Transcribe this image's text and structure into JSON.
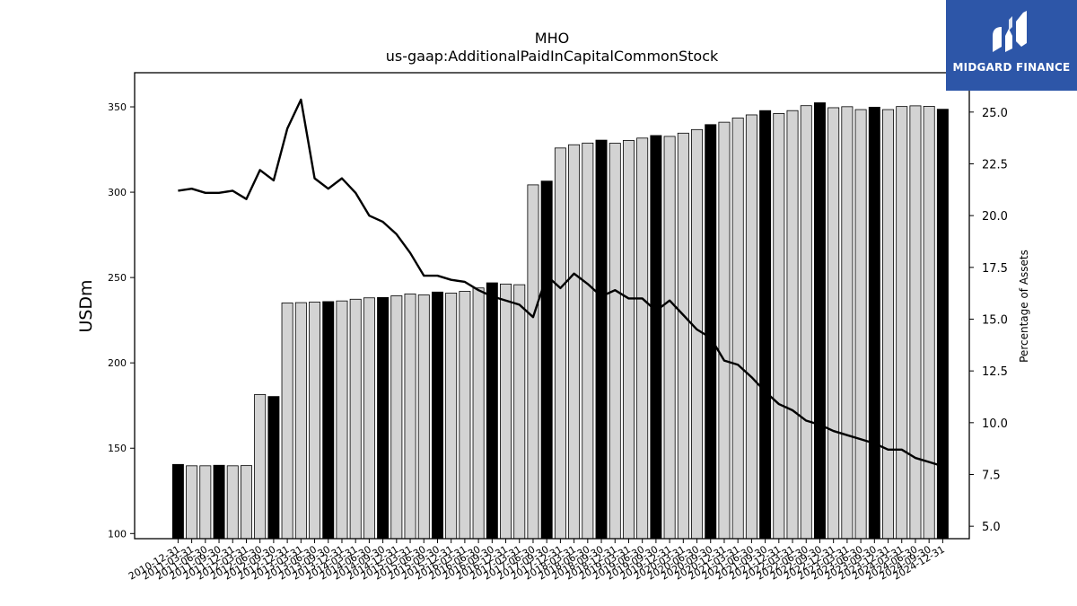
{
  "chart_data": {
    "type": "bar",
    "title": "MHO",
    "subtitle": "us-gaap:AdditionalPaidInCapitalCommonStock",
    "ylabel": "USDm",
    "y2label": "Percentage of Assets",
    "ylim": [
      97,
      370
    ],
    "y2lim": [
      4.4,
      26.9
    ],
    "yticks": [
      100,
      150,
      200,
      250,
      300,
      350
    ],
    "y2ticks": [
      "5.0",
      "7.5",
      "10.0",
      "12.5",
      "15.0",
      "17.5",
      "20.0",
      "22.5",
      "25.0"
    ],
    "categories": [
      "2010-12-31",
      "2011-03-31",
      "2011-06-30",
      "2011-09-30",
      "2011-12-31",
      "2012-03-31",
      "2012-06-30",
      "2012-09-30",
      "2012-12-31",
      "2013-03-31",
      "2013-06-30",
      "2013-09-30",
      "2013-12-31",
      "2014-03-31",
      "2014-06-30",
      "2014-09-30",
      "2014-12-31",
      "2015-03-31",
      "2015-06-30",
      "2015-09-30",
      "2015-12-31",
      "2016-03-31",
      "2016-06-30",
      "2016-09-30",
      "2016-12-31",
      "2017-03-31",
      "2017-06-30",
      "2017-09-30",
      "2017-12-31",
      "2018-03-31",
      "2018-06-30",
      "2018-09-30",
      "2018-12-31",
      "2019-03-31",
      "2019-06-30",
      "2019-09-30",
      "2019-12-31",
      "2020-03-31",
      "2020-06-30",
      "2020-09-30",
      "2020-12-31",
      "2021-03-31",
      "2021-06-30",
      "2021-09-30",
      "2021-12-31",
      "2022-03-31",
      "2022-06-30",
      "2022-09-30",
      "2022-12-31",
      "2023-03-31",
      "2023-06-30",
      "2023-09-30",
      "2023-12-31",
      "2024-03-31",
      "2024-06-30",
      "2024-09-30",
      "2024-12-31"
    ],
    "values": [
      140.5,
      139.7,
      139.7,
      140.0,
      139.7,
      139.8,
      181.5,
      180.3,
      235.1,
      235.3,
      235.6,
      235.9,
      236.3,
      237.3,
      238.1,
      238.3,
      239.3,
      240.4,
      239.8,
      241.5,
      240.9,
      241.9,
      243.9,
      246.9,
      246.2,
      245.8,
      304.3,
      306.5,
      325.9,
      327.8,
      328.8,
      330.5,
      328.7,
      330.3,
      331.7,
      333.2,
      332.7,
      334.6,
      336.7,
      339.6,
      341.0,
      343.5,
      345.3,
      347.8,
      346.1,
      347.8,
      350.7,
      352.4,
      349.5,
      350.1,
      348.4,
      349.8,
      348.4,
      350.2,
      350.6,
      350.3,
      348.6
    ],
    "highlight": [
      true,
      false,
      false,
      true,
      false,
      false,
      false,
      true,
      false,
      false,
      false,
      true,
      false,
      false,
      false,
      true,
      false,
      false,
      false,
      true,
      false,
      false,
      false,
      true,
      false,
      false,
      false,
      true,
      false,
      false,
      false,
      true,
      false,
      false,
      false,
      true,
      false,
      false,
      false,
      true,
      false,
      false,
      false,
      true,
      false,
      false,
      false,
      true,
      false,
      false,
      false,
      true,
      false,
      false,
      false,
      false,
      true
    ],
    "line_values": [
      21.2,
      21.3,
      21.1,
      21.1,
      21.2,
      20.8,
      22.2,
      21.7,
      24.2,
      25.6,
      21.8,
      21.3,
      21.8,
      21.1,
      20.0,
      19.7,
      19.1,
      18.2,
      17.1,
      17.1,
      16.9,
      16.8,
      16.4,
      16.1,
      15.9,
      15.7,
      15.1,
      17.1,
      16.5,
      17.2,
      16.7,
      16.1,
      16.4,
      16.0,
      16.0,
      15.4,
      15.9,
      15.2,
      14.5,
      14.1,
      13.0,
      12.8,
      12.2,
      11.5,
      10.9,
      10.6,
      10.1,
      9.9,
      9.6,
      9.4,
      9.2,
      9.0,
      8.7,
      8.7,
      8.3,
      8.1,
      7.9
    ],
    "series": [
      {
        "type": "bar",
        "colors": {
          "normal": "#d3d3d3",
          "highlight": "#000000",
          "edge": "#000000"
        }
      },
      {
        "type": "line",
        "axis": "right",
        "color": "#000000"
      }
    ],
    "grid": false
  },
  "logo": {
    "text": "MIDGARD FINANCE",
    "background": "#2d56a8"
  }
}
